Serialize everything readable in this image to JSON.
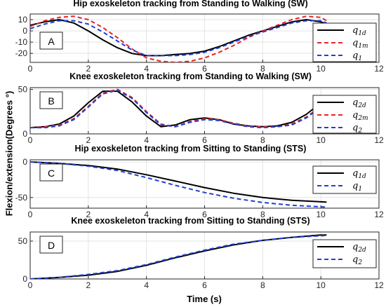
{
  "figure": {
    "ylabel": "Flexion/extension(Degrees °)",
    "xlabel": "Time (s)"
  },
  "colors": {
    "desired": "#000000",
    "model": "#e32626",
    "actual": "#1f3fd6"
  },
  "chart_data": [
    {
      "type": "line",
      "panel_label": "A",
      "title": "Hip exoskeleton tracking from Standing to Walking (SW)",
      "xlabel": "",
      "ylabel": "",
      "xlim": [
        0,
        12
      ],
      "ylim": [
        -28,
        15
      ],
      "xticks": [
        0,
        2,
        4,
        6,
        8,
        10,
        12
      ],
      "yticks": [
        10,
        0,
        -10,
        -20
      ],
      "grid": true,
      "legend_position": "right",
      "series": [
        {
          "name": "q1d",
          "legend_base": "q",
          "legend_sub": "1d",
          "style": "solid",
          "color": "#000000",
          "x": [
            0,
            0.5,
            1,
            1.5,
            2,
            2.5,
            3,
            3.5,
            4,
            4.5,
            5,
            5.5,
            6,
            6.5,
            7,
            7.5,
            8,
            8.5,
            9,
            9.5,
            10,
            10.2
          ],
          "y": [
            5,
            8,
            10,
            7,
            0,
            -8,
            -15,
            -20,
            -22,
            -22,
            -21,
            -20,
            -18,
            -14,
            -9,
            -4,
            0,
            4,
            8,
            10,
            8,
            6
          ]
        },
        {
          "name": "q1m",
          "legend_base": "q",
          "legend_sub": "1m",
          "style": "dashed",
          "color": "#e32626",
          "x": [
            0,
            0.5,
            1,
            1.5,
            2,
            2.5,
            3,
            3.5,
            4,
            4.5,
            5,
            5.5,
            6,
            6.5,
            7,
            7.5,
            8,
            8.5,
            9,
            9.5,
            10,
            10.2
          ],
          "y": [
            4,
            9,
            12,
            13,
            10,
            3,
            -6,
            -16,
            -24,
            -27,
            -28,
            -27,
            -24,
            -19,
            -13,
            -6,
            0,
            5,
            10,
            13,
            12,
            9
          ]
        },
        {
          "name": "q1",
          "legend_base": "q",
          "legend_sub": "1",
          "style": "dashed",
          "color": "#1f3fd6",
          "x": [
            0,
            0.5,
            1,
            1.5,
            2,
            2.5,
            3,
            3.5,
            4,
            4.5,
            5,
            5.5,
            6,
            6.5,
            7,
            7.5,
            8,
            8.5,
            9,
            9.5,
            10,
            10.2
          ],
          "y": [
            2,
            6,
            9,
            9,
            6,
            -1,
            -9,
            -17,
            -22,
            -22,
            -22,
            -21,
            -19,
            -15,
            -10,
            -5,
            -1,
            3,
            7,
            9,
            9,
            7
          ]
        }
      ]
    },
    {
      "type": "line",
      "panel_label": "B",
      "title": "Knee exoskeleton tracking from Standing to Walking (SW)",
      "xlabel": "",
      "ylabel": "",
      "xlim": [
        0,
        12
      ],
      "ylim": [
        0,
        52
      ],
      "xticks": [
        0,
        2,
        4,
        6,
        8,
        10,
        12
      ],
      "yticks": [
        50,
        0
      ],
      "grid": true,
      "legend_position": "right",
      "series": [
        {
          "name": "q2d",
          "legend_base": "q",
          "legend_sub": "2d",
          "style": "solid",
          "color": "#000000",
          "x": [
            0,
            0.5,
            1,
            1.5,
            2,
            2.5,
            3,
            3.5,
            4,
            4.5,
            5,
            5.5,
            6,
            6.5,
            7,
            7.5,
            8,
            8.5,
            9,
            9.5,
            10,
            10.2
          ],
          "y": [
            7,
            8,
            11,
            20,
            35,
            48,
            48,
            36,
            20,
            8,
            10,
            16,
            18,
            16,
            11,
            9,
            8,
            9,
            13,
            22,
            35,
            40
          ]
        },
        {
          "name": "q2m",
          "legend_base": "q",
          "legend_sub": "2m",
          "style": "dashed",
          "color": "#e32626",
          "x": [
            0,
            0.5,
            1,
            1.5,
            2,
            2.5,
            3,
            3.5,
            4,
            4.5,
            5,
            5.5,
            6,
            6.5,
            7,
            7.5,
            8,
            8.5,
            9,
            9.5,
            10,
            10.2
          ],
          "y": [
            7,
            8,
            10,
            17,
            31,
            46,
            50,
            41,
            25,
            11,
            8,
            14,
            17,
            16,
            12,
            9,
            8,
            8,
            11,
            19,
            31,
            37
          ]
        },
        {
          "name": "q2",
          "legend_base": "q",
          "legend_sub": "2",
          "style": "dashed",
          "color": "#1f3fd6",
          "x": [
            0,
            0.5,
            1,
            1.5,
            2,
            2.5,
            3,
            3.5,
            4,
            4.5,
            5,
            5.5,
            6,
            6.5,
            7,
            7.5,
            8,
            8.5,
            9,
            9.5,
            10,
            10.2
          ],
          "y": [
            7,
            7,
            9,
            16,
            30,
            45,
            49,
            40,
            24,
            10,
            8,
            13,
            16,
            15,
            11,
            8,
            7,
            8,
            10,
            18,
            30,
            36
          ]
        }
      ]
    },
    {
      "type": "line",
      "panel_label": "C",
      "title": "Hip exoskeleton tracking from Sitting to Standing (STS)",
      "xlabel": "",
      "ylabel": "",
      "xlim": [
        0,
        12
      ],
      "ylim": [
        -65,
        3
      ],
      "xticks": [
        0,
        2,
        4,
        6,
        8,
        10,
        12
      ],
      "yticks": [
        0,
        -50
      ],
      "grid": true,
      "legend_position": "right",
      "series": [
        {
          "name": "q1d",
          "legend_base": "q",
          "legend_sub": "1d",
          "style": "solid",
          "color": "#000000",
          "x": [
            0,
            1,
            2,
            3,
            4,
            5,
            6,
            7,
            8,
            9,
            10,
            10.2
          ],
          "y": [
            0,
            -2,
            -5,
            -10,
            -18,
            -27,
            -36,
            -44,
            -50,
            -54,
            -56,
            -56.5
          ]
        },
        {
          "name": "q1",
          "legend_base": "q",
          "legend_sub": "1",
          "style": "dashed",
          "color": "#1f3fd6",
          "x": [
            0,
            1,
            2,
            3,
            4,
            5,
            6,
            7,
            8,
            9,
            10,
            10.2
          ],
          "y": [
            0,
            -2,
            -6,
            -12,
            -22,
            -33,
            -43,
            -51,
            -57,
            -61,
            -63,
            -63.5
          ]
        }
      ]
    },
    {
      "type": "line",
      "panel_label": "D",
      "title": "Knee exoskeleton tracking from Sitting to Standing (STS)",
      "xlabel": "Time (s)",
      "ylabel": "",
      "xlim": [
        0,
        12
      ],
      "ylim": [
        0,
        62
      ],
      "xticks": [
        0,
        2,
        4,
        6,
        8,
        10,
        12
      ],
      "yticks": [
        50,
        0
      ],
      "grid": true,
      "legend_position": "right",
      "series": [
        {
          "name": "q2d",
          "legend_base": "q",
          "legend_sub": "2d",
          "style": "solid",
          "color": "#000000",
          "x": [
            0,
            1,
            2,
            3,
            4,
            5,
            6,
            7,
            8,
            9,
            10,
            10.2
          ],
          "y": [
            0,
            2,
            5,
            10,
            18,
            28,
            37,
            45,
            51,
            55,
            58,
            58
          ]
        },
        {
          "name": "q2",
          "legend_base": "q",
          "legend_sub": "2",
          "style": "dashed",
          "color": "#1f3fd6",
          "x": [
            0,
            1,
            2,
            3,
            4,
            5,
            6,
            7,
            8,
            9,
            10,
            10.2
          ],
          "y": [
            0,
            2,
            6,
            11,
            19,
            29,
            38,
            46,
            51,
            55,
            57,
            57.5
          ]
        }
      ]
    }
  ]
}
